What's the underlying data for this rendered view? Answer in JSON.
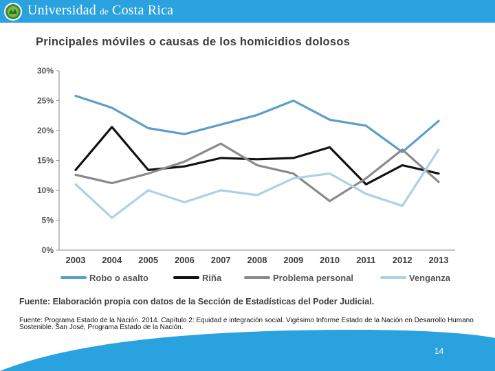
{
  "header": {
    "university_name_part1": "Universidad",
    "university_name_de": "de",
    "university_name_part2": "Costa Rica"
  },
  "colors": {
    "header_blue": "#2aa2df",
    "robo": "#5b9ec8",
    "rina": "#111111",
    "problema": "#8a8a8a",
    "venganza": "#acd0e6"
  },
  "chart_data": {
    "type": "line",
    "title": "Principales móviles o causas de los homicidios dolosos",
    "xlabel": "",
    "ylabel": "",
    "x": [
      "2003",
      "2004",
      "2005",
      "2006",
      "2007",
      "2008",
      "2009",
      "2010",
      "2011",
      "2012",
      "2013"
    ],
    "ylim": [
      0,
      30
    ],
    "yticks": [
      "0%",
      "5%",
      "10%",
      "15%",
      "20%",
      "25%",
      "30%"
    ],
    "legend_position": "bottom",
    "grid": false,
    "series": [
      {
        "name": "Robo o asalto",
        "color": "#5b9ec8",
        "values": [
          25.8,
          23.8,
          20.4,
          19.4,
          21.0,
          22.6,
          25.0,
          21.8,
          20.8,
          16.4,
          21.6
        ]
      },
      {
        "name": "Riña",
        "color": "#111111",
        "values": [
          13.4,
          20.6,
          13.4,
          14.0,
          15.4,
          15.2,
          15.4,
          17.2,
          11.0,
          14.2,
          12.8
        ]
      },
      {
        "name": "Problema personal",
        "color": "#8a8a8a",
        "values": [
          12.6,
          11.2,
          12.8,
          14.8,
          17.8,
          14.2,
          12.8,
          8.2,
          12.0,
          16.8,
          11.4
        ]
      },
      {
        "name": "Venganza",
        "color": "#acd0e6",
        "values": [
          11.0,
          5.4,
          10.0,
          8.0,
          10.0,
          9.2,
          12.0,
          12.8,
          9.4,
          7.4,
          16.8
        ]
      }
    ]
  },
  "source_chart": "Fuente: Elaboración propia con datos de la Sección de Estadísticas del Poder Judicial.",
  "source_slide": "Fuente: Programa Estado de la Nación. 2014. Capítulo 2: Equidad e integración social. Vigésimo Informe Estado de la Nación en Desarrollo Humano Sostenible. San José, Programa Estado de la Nación.",
  "page_number": "14"
}
